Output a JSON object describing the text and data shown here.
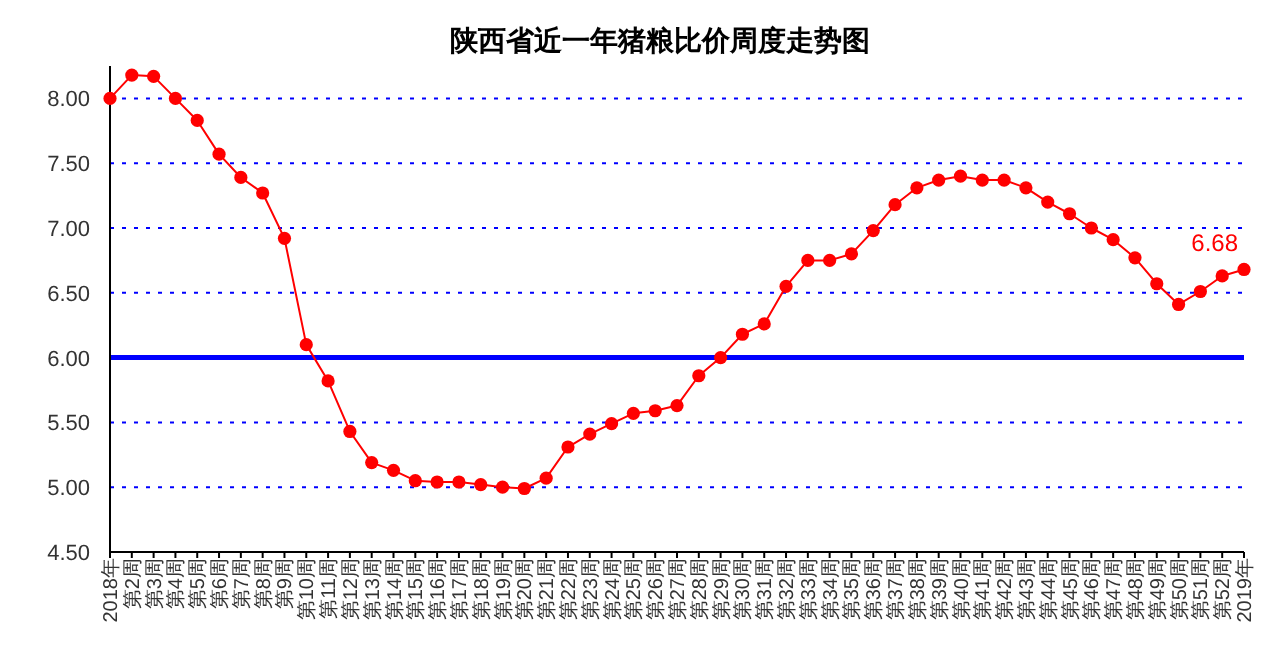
{
  "chart_data": {
    "type": "line",
    "title": "陕西省近一年猪粮比价周度走势图",
    "categories": [
      "2018年",
      "第2周",
      "第3周",
      "第4周",
      "第5周",
      "第6周",
      "第7周",
      "第8周",
      "第9周",
      "第10周",
      "第11周",
      "第12周",
      "第13周",
      "第14周",
      "第15周",
      "第16周",
      "第17周",
      "第18周",
      "第19周",
      "第20周",
      "第21周",
      "第22周",
      "第23周",
      "第24周",
      "第25周",
      "第26周",
      "第27周",
      "第28周",
      "第29周",
      "第30周",
      "第31周",
      "第32周",
      "第33周",
      "第34周",
      "第35周",
      "第36周",
      "第37周",
      "第38周",
      "第39周",
      "第40周",
      "第41周",
      "第42周",
      "第43周",
      "第44周",
      "第45周",
      "第46周",
      "第47周",
      "第48周",
      "第49周",
      "第50周",
      "第51周",
      "第52周",
      "2019年"
    ],
    "series": [
      {
        "color": "#ff0000",
        "values": [
          8.0,
          8.18,
          8.17,
          8.0,
          7.83,
          7.57,
          7.39,
          7.27,
          6.92,
          6.1,
          5.82,
          5.43,
          5.19,
          5.13,
          5.05,
          5.04,
          5.04,
          5.02,
          5.0,
          4.99,
          5.07,
          5.31,
          5.41,
          5.49,
          5.57,
          5.59,
          5.63,
          5.86,
          6.0,
          6.18,
          6.26,
          6.55,
          6.75,
          6.75,
          6.8,
          6.98,
          7.18,
          7.31,
          7.37,
          7.4,
          7.37,
          7.37,
          7.31,
          7.2,
          7.11,
          7.0,
          6.91,
          6.77,
          6.57,
          6.41,
          6.51,
          6.63,
          6.68
        ],
        "value_labels": [
          null,
          null,
          null,
          null,
          null,
          null,
          null,
          null,
          null,
          null,
          null,
          null,
          null,
          null,
          null,
          null,
          null,
          null,
          null,
          null,
          null,
          null,
          null,
          null,
          null,
          null,
          null,
          null,
          null,
          null,
          null,
          null,
          null,
          null,
          null,
          null,
          null,
          null,
          null,
          null,
          null,
          null,
          null,
          null,
          null,
          null,
          null,
          null,
          null,
          null,
          null,
          null,
          "6.68"
        ]
      }
    ],
    "ylim": [
      4.5,
      8.25
    ],
    "yticks": [
      {
        "value": 4.5,
        "label": "4.50"
      },
      {
        "value": 5,
        "label": "5.00"
      },
      {
        "value": 5.5,
        "label": "5.50"
      },
      {
        "value": 6,
        "label": "6.00"
      },
      {
        "value": 6.5,
        "label": "6.50"
      },
      {
        "value": 7,
        "label": "7.00"
      },
      {
        "value": 7.5,
        "label": "7.50"
      },
      {
        "value": 8,
        "label": "8.00"
      }
    ],
    "grid": "y",
    "marker": "circle",
    "line_style": "solid",
    "ref_lines": [
      {
        "axis": "y",
        "value": 6,
        "color": "#0000ff",
        "line_style": "solid"
      }
    ]
  }
}
